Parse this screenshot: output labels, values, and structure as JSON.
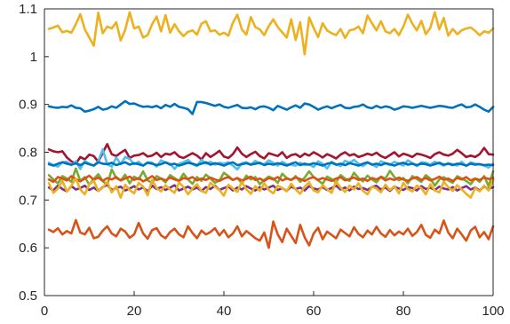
{
  "chart_data": {
    "type": "line",
    "title": "",
    "xlabel": "",
    "ylabel": "",
    "xlim": [
      0,
      100
    ],
    "ylim": [
      0.5,
      1.1
    ],
    "xticks": [
      0,
      20,
      40,
      60,
      80,
      100
    ],
    "xtick_labels": [
      "0",
      "20",
      "40",
      "60",
      "80",
      "100"
    ],
    "yticks": [
      0.5,
      0.6,
      0.7,
      0.8,
      0.9,
      1.0,
      1.1
    ],
    "ytick_labels": [
      "0.5",
      "0.6",
      "0.7",
      "0.8",
      "0.9",
      "1",
      "1.1"
    ],
    "grid": false,
    "legend": "none",
    "x": [
      1,
      2,
      3,
      4,
      5,
      6,
      7,
      8,
      9,
      10,
      11,
      12,
      13,
      14,
      15,
      16,
      17,
      18,
      19,
      20,
      21,
      22,
      23,
      24,
      25,
      26,
      27,
      28,
      29,
      30,
      31,
      32,
      33,
      34,
      35,
      36,
      37,
      38,
      39,
      40,
      41,
      42,
      43,
      44,
      45,
      46,
      47,
      48,
      49,
      50,
      51,
      52,
      53,
      54,
      55,
      56,
      57,
      58,
      59,
      60,
      61,
      62,
      63,
      64,
      65,
      66,
      67,
      68,
      69,
      70,
      71,
      72,
      73,
      74,
      75,
      76,
      77,
      78,
      79,
      80,
      81,
      82,
      83,
      84,
      85,
      86,
      87,
      88,
      89,
      90,
      91,
      92,
      93,
      94,
      95,
      96,
      97,
      98,
      99,
      100
    ],
    "series": [
      {
        "color": "#EDB120",
        "values": [
          1.058,
          1.061,
          1.065,
          1.051,
          1.054,
          1.05,
          1.068,
          1.089,
          1.057,
          1.04,
          1.023,
          1.092,
          1.049,
          1.063,
          1.059,
          1.072,
          1.034,
          1.056,
          1.093,
          1.059,
          1.063,
          1.04,
          1.045,
          1.068,
          1.084,
          1.053,
          1.087,
          1.05,
          1.068,
          1.053,
          1.043,
          1.052,
          1.055,
          1.046,
          1.069,
          1.074,
          1.053,
          1.055,
          1.046,
          1.05,
          1.044,
          1.071,
          1.088,
          1.057,
          1.046,
          1.083,
          1.062,
          1.057,
          1.045,
          1.064,
          1.078,
          1.062,
          1.051,
          1.04,
          1.078,
          1.035,
          1.072,
          1.005,
          1.082,
          1.06,
          1.041,
          1.07,
          1.055,
          1.049,
          1.045,
          1.058,
          1.039,
          1.055,
          1.057,
          1.063,
          1.049,
          1.086,
          1.07,
          1.055,
          1.074,
          1.053,
          1.049,
          1.058,
          1.045,
          1.063,
          1.088,
          1.069,
          1.055,
          1.075,
          1.047,
          1.06,
          1.093,
          1.057,
          1.081,
          1.044,
          1.058,
          1.047,
          1.055,
          1.059,
          1.061,
          1.054,
          1.045,
          1.053,
          1.05,
          1.059
        ]
      },
      {
        "color": "#0072BD",
        "values": [
          0.896,
          0.894,
          0.893,
          0.895,
          0.894,
          0.898,
          0.893,
          0.892,
          0.885,
          0.887,
          0.89,
          0.895,
          0.889,
          0.891,
          0.896,
          0.893,
          0.9,
          0.907,
          0.901,
          0.902,
          0.898,
          0.895,
          0.896,
          0.894,
          0.897,
          0.892,
          0.899,
          0.895,
          0.901,
          0.895,
          0.893,
          0.89,
          0.88,
          0.905,
          0.905,
          0.903,
          0.9,
          0.897,
          0.9,
          0.895,
          0.893,
          0.896,
          0.899,
          0.893,
          0.892,
          0.894,
          0.89,
          0.895,
          0.896,
          0.893,
          0.888,
          0.897,
          0.893,
          0.889,
          0.894,
          0.898,
          0.893,
          0.902,
          0.9,
          0.895,
          0.889,
          0.893,
          0.896,
          0.892,
          0.896,
          0.899,
          0.893,
          0.892,
          0.895,
          0.896,
          0.9,
          0.894,
          0.892,
          0.897,
          0.893,
          0.896,
          0.894,
          0.889,
          0.892,
          0.896,
          0.895,
          0.893,
          0.895,
          0.897,
          0.895,
          0.893,
          0.895,
          0.897,
          0.896,
          0.894,
          0.893,
          0.897,
          0.9,
          0.894,
          0.895,
          0.9,
          0.895,
          0.889,
          0.885,
          0.895
        ]
      },
      {
        "color": "#A2142F",
        "values": [
          0.806,
          0.802,
          0.8,
          0.802,
          0.789,
          0.781,
          0.776,
          0.79,
          0.785,
          0.795,
          0.792,
          0.78,
          0.799,
          0.817,
          0.796,
          0.792,
          0.799,
          0.805,
          0.788,
          0.793,
          0.794,
          0.798,
          0.791,
          0.793,
          0.799,
          0.79,
          0.797,
          0.795,
          0.8,
          0.791,
          0.788,
          0.793,
          0.798,
          0.793,
          0.785,
          0.798,
          0.79,
          0.796,
          0.803,
          0.791,
          0.788,
          0.796,
          0.81,
          0.797,
          0.79,
          0.796,
          0.801,
          0.792,
          0.787,
          0.798,
          0.795,
          0.792,
          0.8,
          0.788,
          0.794,
          0.796,
          0.79,
          0.797,
          0.793,
          0.8,
          0.795,
          0.789,
          0.796,
          0.792,
          0.787,
          0.795,
          0.8,
          0.793,
          0.796,
          0.79,
          0.793,
          0.797,
          0.794,
          0.799,
          0.792,
          0.788,
          0.794,
          0.8,
          0.791,
          0.797,
          0.794,
          0.79,
          0.797,
          0.795,
          0.792,
          0.788,
          0.796,
          0.8,
          0.795,
          0.793,
          0.797,
          0.805,
          0.798,
          0.79,
          0.793,
          0.79,
          0.796,
          0.809,
          0.796,
          0.795
        ]
      },
      {
        "color": "#4DBEEE",
        "values": [
          0.778,
          0.773,
          0.77,
          0.779,
          0.78,
          0.773,
          0.781,
          0.765,
          0.782,
          0.776,
          0.772,
          0.781,
          0.806,
          0.775,
          0.77,
          0.789,
          0.775,
          0.79,
          0.786,
          0.775,
          0.78,
          0.772,
          0.779,
          0.778,
          0.77,
          0.783,
          0.778,
          0.776,
          0.765,
          0.776,
          0.779,
          0.784,
          0.775,
          0.771,
          0.784,
          0.776,
          0.78,
          0.774,
          0.778,
          0.776,
          0.779,
          0.772,
          0.764,
          0.777,
          0.779,
          0.774,
          0.782,
          0.776,
          0.775,
          0.783,
          0.778,
          0.772,
          0.78,
          0.775,
          0.774,
          0.772,
          0.778,
          0.773,
          0.775,
          0.769,
          0.781,
          0.776,
          0.766,
          0.78,
          0.775,
          0.771,
          0.782,
          0.778,
          0.784,
          0.776,
          0.771,
          0.778,
          0.775,
          0.769,
          0.781,
          0.777,
          0.773,
          0.78,
          0.776,
          0.772,
          0.783,
          0.777,
          0.771,
          0.779,
          0.778,
          0.774,
          0.78,
          0.776,
          0.772,
          0.777,
          0.775,
          0.772,
          0.78,
          0.771,
          0.779,
          0.776,
          0.775,
          0.772,
          0.768,
          0.776
        ]
      },
      {
        "color": "#0072BD",
        "values": [
          0.775,
          0.772,
          0.776,
          0.779,
          0.776,
          0.774,
          0.777,
          0.773,
          0.778,
          0.775,
          0.772,
          0.779,
          0.776,
          0.775,
          0.778,
          0.773,
          0.776,
          0.779,
          0.774,
          0.777,
          0.775,
          0.772,
          0.778,
          0.776,
          0.773,
          0.775,
          0.779,
          0.774,
          0.776,
          0.772,
          0.775,
          0.778,
          0.776,
          0.773,
          0.776,
          0.779,
          0.774,
          0.777,
          0.775,
          0.772,
          0.776,
          0.779,
          0.773,
          0.775,
          0.777,
          0.774,
          0.776,
          0.778,
          0.773,
          0.776,
          0.774,
          0.777,
          0.775,
          0.772,
          0.776,
          0.779,
          0.773,
          0.776,
          0.774,
          0.777,
          0.775,
          0.772,
          0.776,
          0.778,
          0.774,
          0.776,
          0.773,
          0.777,
          0.775,
          0.772,
          0.776,
          0.779,
          0.774,
          0.776,
          0.773,
          0.777,
          0.775,
          0.772,
          0.776,
          0.778,
          0.774,
          0.776,
          0.773,
          0.776,
          0.775,
          0.772,
          0.775,
          0.778,
          0.774,
          0.776,
          0.773,
          0.776,
          0.775,
          0.772,
          0.776,
          0.774,
          0.775,
          0.773,
          0.774,
          0.773
        ]
      },
      {
        "color": "#77AC30",
        "values": [
          0.752,
          0.743,
          0.735,
          0.75,
          0.745,
          0.738,
          0.766,
          0.74,
          0.748,
          0.732,
          0.744,
          0.754,
          0.74,
          0.731,
          0.764,
          0.746,
          0.741,
          0.753,
          0.735,
          0.749,
          0.743,
          0.76,
          0.741,
          0.736,
          0.75,
          0.745,
          0.737,
          0.752,
          0.746,
          0.74,
          0.755,
          0.743,
          0.734,
          0.748,
          0.74,
          0.753,
          0.745,
          0.736,
          0.741,
          0.757,
          0.75,
          0.742,
          0.746,
          0.735,
          0.751,
          0.743,
          0.748,
          0.733,
          0.742,
          0.749,
          0.745,
          0.736,
          0.755,
          0.746,
          0.742,
          0.75,
          0.738,
          0.747,
          0.76,
          0.748,
          0.741,
          0.734,
          0.749,
          0.744,
          0.737,
          0.752,
          0.745,
          0.74,
          0.757,
          0.746,
          0.739,
          0.751,
          0.743,
          0.737,
          0.749,
          0.745,
          0.761,
          0.748,
          0.741,
          0.746,
          0.735,
          0.75,
          0.744,
          0.738,
          0.752,
          0.745,
          0.73,
          0.743,
          0.748,
          0.741,
          0.736,
          0.75,
          0.745,
          0.74,
          0.733,
          0.745,
          0.738,
          0.75,
          0.729,
          0.76
        ]
      },
      {
        "color": "#D95319",
        "values": [
          0.743,
          0.738,
          0.748,
          0.745,
          0.741,
          0.75,
          0.744,
          0.739,
          0.745,
          0.751,
          0.742,
          0.747,
          0.74,
          0.746,
          0.743,
          0.748,
          0.741,
          0.745,
          0.749,
          0.742,
          0.746,
          0.739,
          0.744,
          0.75,
          0.742,
          0.745,
          0.741,
          0.747,
          0.743,
          0.74,
          0.746,
          0.744,
          0.748,
          0.741,
          0.745,
          0.742,
          0.747,
          0.743,
          0.74,
          0.745,
          0.748,
          0.742,
          0.746,
          0.741,
          0.744,
          0.749,
          0.742,
          0.745,
          0.74,
          0.746,
          0.743,
          0.748,
          0.741,
          0.745,
          0.742,
          0.747,
          0.744,
          0.74,
          0.745,
          0.748,
          0.742,
          0.746,
          0.743,
          0.74,
          0.745,
          0.748,
          0.741,
          0.744,
          0.747,
          0.742,
          0.745,
          0.74,
          0.746,
          0.743,
          0.748,
          0.741,
          0.745,
          0.742,
          0.747,
          0.743,
          0.74,
          0.745,
          0.748,
          0.742,
          0.746,
          0.741,
          0.744,
          0.749,
          0.742,
          0.745,
          0.74,
          0.746,
          0.743,
          0.748,
          0.741,
          0.745,
          0.742,
          0.747,
          0.744,
          0.746
        ]
      },
      {
        "color": "#7E2F8E",
        "values": [
          0.726,
          0.72,
          0.73,
          0.723,
          0.718,
          0.729,
          0.722,
          0.725,
          0.73,
          0.721,
          0.726,
          0.719,
          0.727,
          0.732,
          0.721,
          0.725,
          0.728,
          0.72,
          0.724,
          0.729,
          0.722,
          0.726,
          0.718,
          0.73,
          0.723,
          0.727,
          0.721,
          0.726,
          0.731,
          0.72,
          0.724,
          0.728,
          0.722,
          0.726,
          0.719,
          0.727,
          0.723,
          0.73,
          0.721,
          0.725,
          0.728,
          0.72,
          0.726,
          0.722,
          0.729,
          0.724,
          0.72,
          0.727,
          0.722,
          0.726,
          0.73,
          0.721,
          0.725,
          0.719,
          0.728,
          0.723,
          0.726,
          0.72,
          0.729,
          0.724,
          0.722,
          0.727,
          0.721,
          0.725,
          0.73,
          0.722,
          0.726,
          0.72,
          0.728,
          0.723,
          0.725,
          0.721,
          0.727,
          0.73,
          0.722,
          0.726,
          0.719,
          0.728,
          0.724,
          0.721,
          0.727,
          0.725,
          0.72,
          0.729,
          0.723,
          0.726,
          0.721,
          0.728,
          0.724,
          0.722,
          0.727,
          0.72,
          0.725,
          0.729,
          0.722,
          0.726,
          0.72,
          0.728,
          0.723,
          0.727
        ]
      },
      {
        "color": "#EDB120",
        "values": [
          0.735,
          0.715,
          0.724,
          0.74,
          0.718,
          0.73,
          0.745,
          0.722,
          0.712,
          0.733,
          0.74,
          0.719,
          0.726,
          0.738,
          0.716,
          0.729,
          0.705,
          0.732,
          0.721,
          0.714,
          0.736,
          0.728,
          0.71,
          0.742,
          0.725,
          0.718,
          0.731,
          0.722,
          0.715,
          0.737,
          0.727,
          0.712,
          0.724,
          0.733,
          0.719,
          0.715,
          0.736,
          0.728,
          0.721,
          0.709,
          0.732,
          0.724,
          0.717,
          0.738,
          0.722,
          0.713,
          0.729,
          0.719,
          0.735,
          0.721,
          0.714,
          0.73,
          0.725,
          0.718,
          0.734,
          0.722,
          0.713,
          0.728,
          0.737,
          0.72,
          0.716,
          0.731,
          0.723,
          0.715,
          0.739,
          0.726,
          0.717,
          0.73,
          0.722,
          0.735,
          0.719,
          0.712,
          0.728,
          0.724,
          0.716,
          0.732,
          0.721,
          0.729,
          0.714,
          0.736,
          0.723,
          0.718,
          0.73,
          0.725,
          0.712,
          0.733,
          0.72,
          0.716,
          0.738,
          0.727,
          0.719,
          0.731,
          0.722,
          0.713,
          0.705,
          0.725,
          0.718,
          0.73,
          0.72,
          0.742
        ]
      },
      {
        "color": "#D95319",
        "values": [
          0.638,
          0.633,
          0.641,
          0.628,
          0.635,
          0.63,
          0.658,
          0.632,
          0.628,
          0.642,
          0.62,
          0.623,
          0.636,
          0.645,
          0.63,
          0.624,
          0.64,
          0.634,
          0.621,
          0.628,
          0.652,
          0.63,
          0.619,
          0.637,
          0.641,
          0.626,
          0.62,
          0.633,
          0.64,
          0.628,
          0.622,
          0.645,
          0.631,
          0.62,
          0.636,
          0.628,
          0.633,
          0.641,
          0.626,
          0.637,
          0.622,
          0.63,
          0.645,
          0.624,
          0.635,
          0.628,
          0.62,
          0.615,
          0.632,
          0.6,
          0.655,
          0.628,
          0.612,
          0.64,
          0.625,
          0.61,
          0.648,
          0.622,
          0.605,
          0.63,
          0.642,
          0.618,
          0.634,
          0.627,
          0.62,
          0.638,
          0.631,
          0.624,
          0.643,
          0.629,
          0.622,
          0.636,
          0.628,
          0.644,
          0.63,
          0.623,
          0.637,
          0.626,
          0.634,
          0.628,
          0.64,
          0.625,
          0.633,
          0.648,
          0.627,
          0.621,
          0.638,
          0.63,
          0.657,
          0.632,
          0.62,
          0.64,
          0.628,
          0.615,
          0.636,
          0.644,
          0.622,
          0.633,
          0.618,
          0.645
        ]
      }
    ]
  }
}
